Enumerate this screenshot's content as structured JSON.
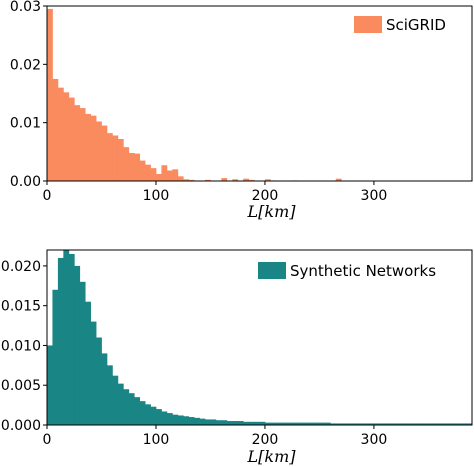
{
  "chart_data": [
    {
      "type": "bar",
      "bin_width": 5,
      "bin_start": 0,
      "xlim": [
        0,
        390
      ],
      "ylim": [
        0,
        0.03
      ],
      "xticks": [
        0,
        100,
        200,
        300
      ],
      "yticks": [
        0.0,
        0.01,
        0.02,
        0.03
      ],
      "ytick_labels": [
        "0.00",
        "0.01",
        "0.02",
        "0.03"
      ],
      "xlabel": "L[km]",
      "legend_position": "top-right",
      "grid": false,
      "series": [
        {
          "name": "SciGRID",
          "color": "#f98b5e",
          "values": [
            0.0295,
            0.0175,
            0.016,
            0.0152,
            0.0143,
            0.013,
            0.0125,
            0.0115,
            0.0112,
            0.0102,
            0.0095,
            0.0082,
            0.0078,
            0.0072,
            0.0058,
            0.0048,
            0.0047,
            0.0035,
            0.0028,
            0.0022,
            0.0012,
            0.0027,
            0.0018,
            0.002,
            0.0008,
            0.0003,
            0.0002,
            0.0,
            0.0,
            0.0002,
            0.0,
            0.0,
            0.0005,
            0.0,
            0.0003,
            0.0,
            0.0004,
            0.0002,
            0.0,
            0.0,
            0.0003,
            0.0001,
            0.0,
            0.0,
            0.0,
            0.0001,
            0.0,
            0.0,
            0.0,
            0.0,
            0.0,
            0.0,
            0.0,
            0.0004
          ]
        }
      ]
    },
    {
      "type": "bar",
      "bin_width": 5,
      "bin_start": 0,
      "xlim": [
        0,
        390
      ],
      "ylim": [
        0,
        0.022
      ],
      "xticks": [
        0,
        100,
        200,
        300
      ],
      "yticks": [
        0.0,
        0.005,
        0.01,
        0.015,
        0.02
      ],
      "ytick_labels": [
        "0.000",
        "0.005",
        "0.010",
        "0.015",
        "0.020"
      ],
      "xlabel": "L[km]",
      "legend_position": "top-right",
      "grid": false,
      "series": [
        {
          "name": "Synthetic Networks",
          "color": "#1a8585",
          "values": [
            0.01,
            0.017,
            0.021,
            0.022,
            0.0215,
            0.02,
            0.018,
            0.0155,
            0.013,
            0.011,
            0.009,
            0.0075,
            0.0062,
            0.0052,
            0.0045,
            0.004,
            0.0035,
            0.003,
            0.0026,
            0.0023,
            0.002,
            0.0017,
            0.0015,
            0.0013,
            0.0012,
            0.0011,
            0.001,
            0.0009,
            0.0008,
            0.0007,
            0.0007,
            0.0006,
            0.0006,
            0.0005,
            0.0005,
            0.0005,
            0.0004,
            0.0004,
            0.0004,
            0.0004,
            0.0003,
            0.0003,
            0.0003,
            0.0003,
            0.0003,
            0.0003,
            0.0003,
            0.0003,
            0.0003,
            0.0003,
            0.0003,
            0.0003,
            0.0002,
            0.0002,
            0.0002,
            0.0002,
            0.0002,
            0.0002,
            0.0002,
            0.0002,
            0.0002,
            0.0002,
            0.0002,
            0.0002,
            0.0002,
            0.0002,
            0.0002,
            0.0002,
            0.0002,
            0.0002,
            0.0002,
            0.0002,
            0.0002,
            0.0002,
            0.0002,
            0.0002,
            0.0002,
            0.0002
          ]
        }
      ]
    }
  ]
}
